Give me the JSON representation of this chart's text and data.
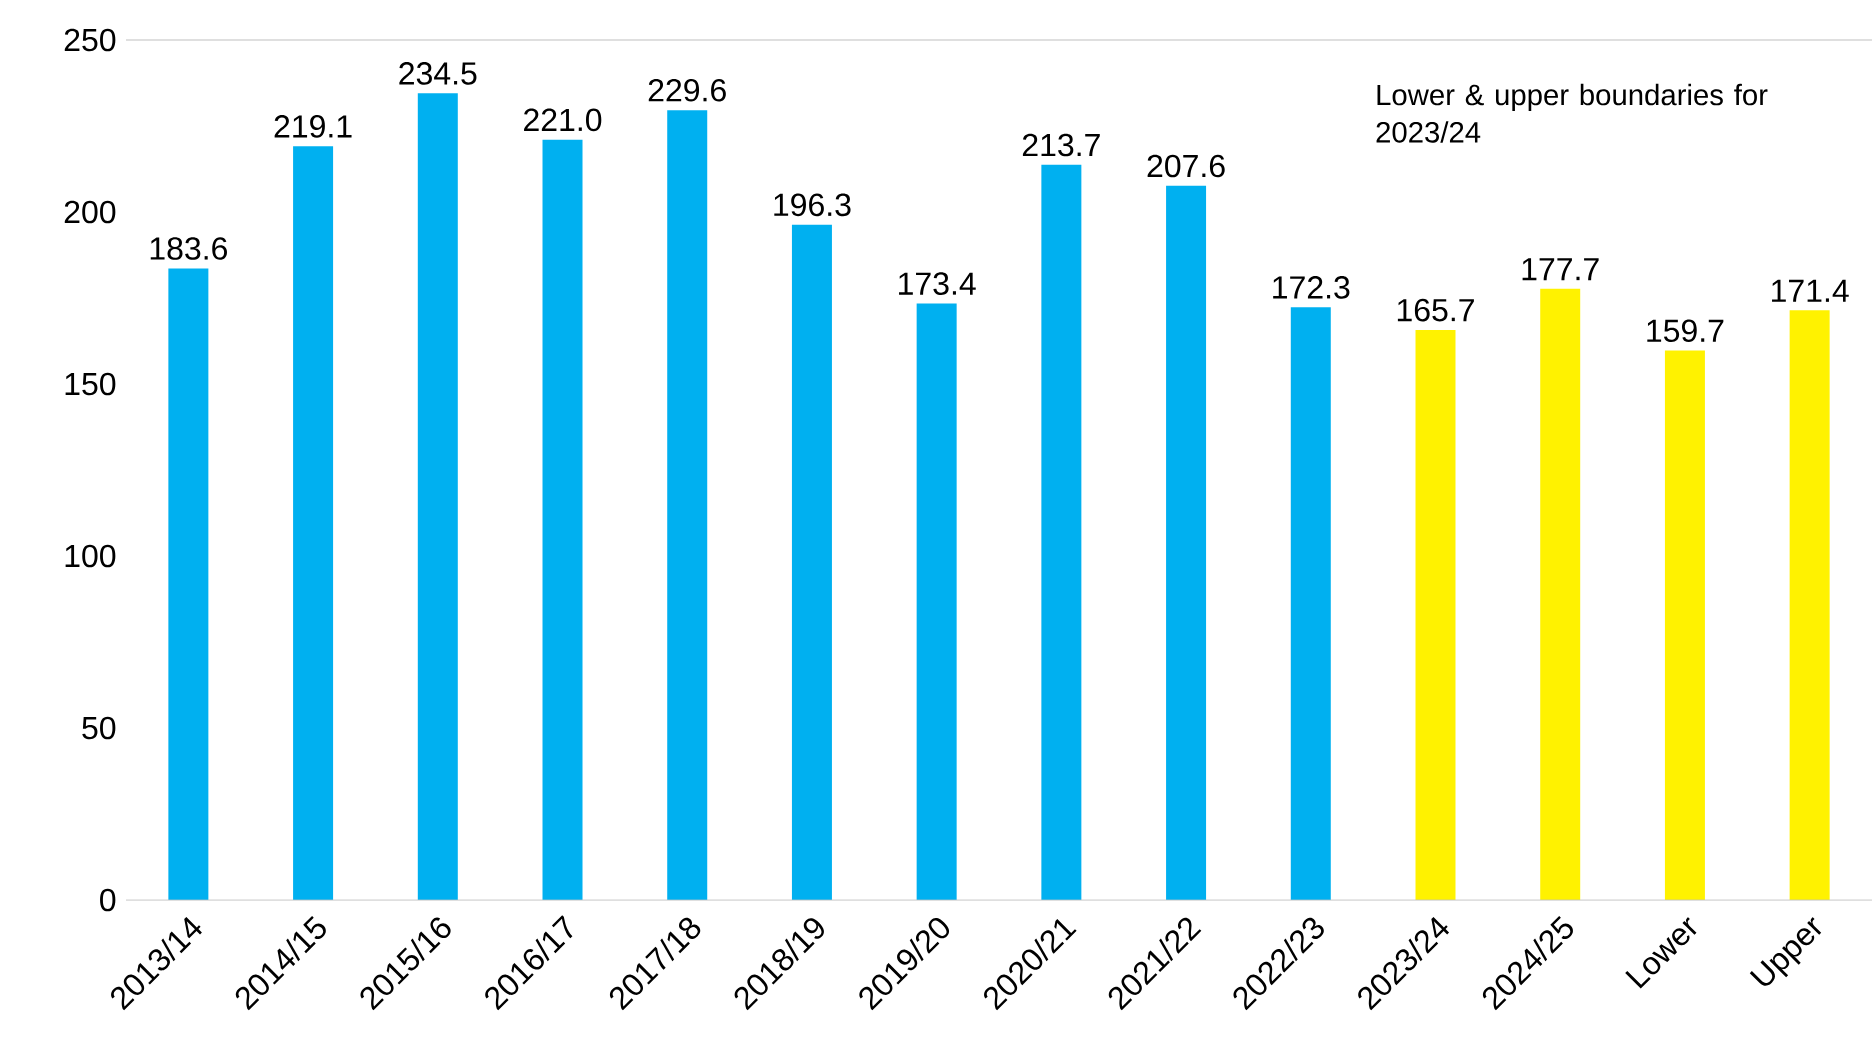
{
  "chart_data": {
    "type": "bar",
    "categories": [
      "2013/14",
      "2014/15",
      "2015/16",
      "2016/17",
      "2017/18",
      "2018/19",
      "2019/20",
      "2020/21",
      "2021/22",
      "2022/23",
      "2023/24",
      "2024/25",
      "Lower",
      "Upper"
    ],
    "values": [
      183.6,
      219.1,
      234.5,
      221.0,
      229.6,
      196.3,
      173.4,
      213.7,
      207.6,
      172.3,
      165.7,
      177.7,
      159.7,
      171.4
    ],
    "colors": [
      "#00b0f0",
      "#00b0f0",
      "#00b0f0",
      "#00b0f0",
      "#00b0f0",
      "#00b0f0",
      "#00b0f0",
      "#00b0f0",
      "#00b0f0",
      "#00b0f0",
      "#fff200",
      "#fff200",
      "#fff200",
      "#fff200"
    ],
    "ylim": [
      0,
      250
    ],
    "yticks": [
      0,
      50,
      100,
      150,
      200,
      250
    ],
    "value_labels": [
      "183.6",
      "219.1",
      "234.5",
      "221.0",
      "229.6",
      "196.3",
      "173.4",
      "213.7",
      "207.6",
      "172.3",
      "165.7",
      "177.7",
      "159.7",
      "171.4"
    ],
    "grid": false,
    "annotations": [
      "Lower & upper boundaries for 2023/24"
    ]
  }
}
